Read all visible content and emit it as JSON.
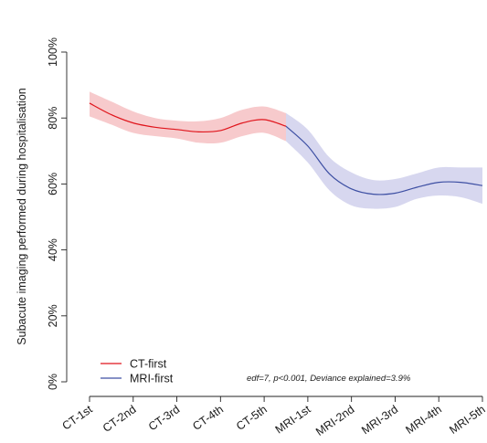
{
  "chart_data": {
    "type": "line",
    "title": "",
    "xlabel": "",
    "ylabel": "Subacute imaging performed during hospitalisation",
    "categories": [
      "CT-1st",
      "CT-2nd",
      "CT-3rd",
      "CT-4th",
      "CT-5th",
      "MRI-1st",
      "MRI-2nd",
      "MRI-3rd",
      "MRI-4th",
      "MRI-5th"
    ],
    "y_ticks": [
      "0%",
      "20%",
      "40%",
      "60%",
      "80%",
      "100%"
    ],
    "ylim": [
      0,
      100
    ],
    "grid": false,
    "legend_position": "bottom-left",
    "annotation": "edf=7, p<0.001, Deviance explained=3.9%",
    "series": [
      {
        "name": "CT-first",
        "color": "#e0151c",
        "band_color": "#f4b8bb",
        "x": [
          1,
          1.5,
          2,
          2.5,
          3,
          3.5,
          4,
          4.5,
          5,
          5.5
        ],
        "y": [
          84.5,
          81,
          78.5,
          77.2,
          76.5,
          75.8,
          76.2,
          78.5,
          79.5,
          77.5
        ],
        "lower": [
          80.5,
          78,
          75.5,
          74.5,
          73.8,
          72.5,
          72.5,
          74.5,
          75.5,
          73
        ],
        "upper": [
          88,
          85,
          82,
          80,
          79.2,
          79,
          80,
          82.5,
          83.5,
          81.5
        ]
      },
      {
        "name": "MRI-first",
        "color": "#3d4fa3",
        "band_color": "#c9c9ea",
        "x": [
          5.5,
          6,
          6.5,
          7,
          7.5,
          8,
          8.5,
          9,
          9.5,
          10
        ],
        "y": [
          77.5,
          71.5,
          63,
          58.5,
          56.9,
          57.2,
          59,
          60.5,
          60.5,
          59.5
        ],
        "lower": [
          73,
          66.5,
          58,
          53.5,
          52.5,
          53,
          55.5,
          56.5,
          56,
          54
        ],
        "upper": [
          81.5,
          76.5,
          68,
          63.5,
          61.2,
          61.5,
          63.2,
          65,
          65,
          65
        ]
      }
    ]
  }
}
